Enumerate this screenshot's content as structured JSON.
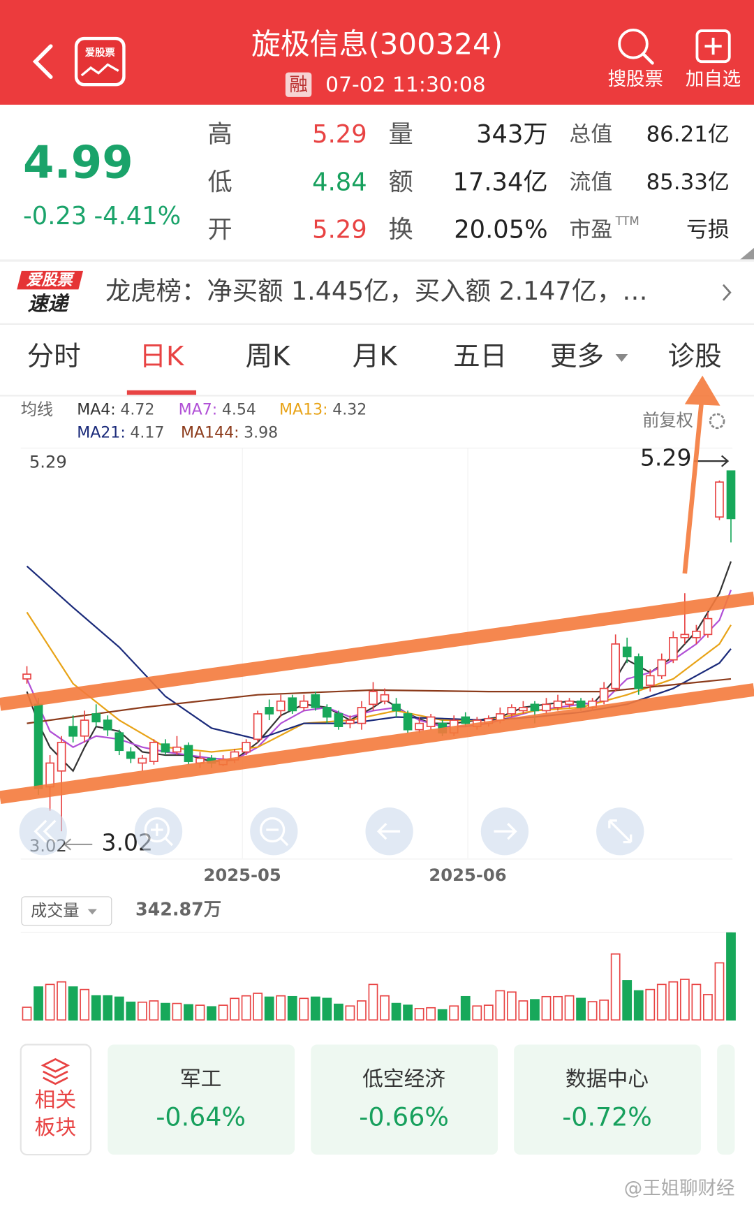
{
  "header": {
    "logo_text": "爱股票",
    "title": "旋极信息(300324)",
    "badge": "融",
    "time": "07-02 11:30:08",
    "actions": [
      "搜股票",
      "加自选"
    ]
  },
  "quote": {
    "price": "4.99",
    "change": "-0.23",
    "change_pct": "-4.41%",
    "stats": [
      [
        "高",
        "5.29",
        "量",
        "343万",
        "总值",
        "86.21亿"
      ],
      [
        "低",
        "4.84",
        "额",
        "17.34亿",
        "流值",
        "85.33亿"
      ],
      [
        "开",
        "5.29",
        "换",
        "20.05%",
        "市盈",
        "亏损"
      ]
    ],
    "pe_sup": "TTM",
    "stat_value_colors": [
      "#e84343",
      "#17a05d",
      "#e84343"
    ]
  },
  "news": {
    "logo_top": "爱股票",
    "logo_bottom": "速递",
    "text": "龙虎榜：净买额 1.445亿，买入额 2.147亿，…"
  },
  "tabs": {
    "items": [
      "分时",
      "日K",
      "周K",
      "月K",
      "五日",
      "更多",
      "诊股"
    ],
    "active": 1
  },
  "chart_data": {
    "type": "candlestick",
    "indicator_label": "均线",
    "adjust": "前复权",
    "xlim": [
      -0.53,
      61.13
    ],
    "ylim": [
      2.85,
      5.42
    ],
    "xticks": [
      {
        "value": 18.67,
        "label": "2025-05"
      },
      {
        "value": 38.2,
        "label": "2025-06"
      }
    ],
    "high_mark": 5.29,
    "low_mark": 3.02,
    "up_color": "#e84343",
    "down_color": "#17a85a",
    "candles": [
      [
        3.98,
        4.06,
        3.95,
        4.01
      ],
      [
        3.82,
        3.86,
        3.25,
        3.29
      ],
      [
        3.3,
        3.5,
        3.15,
        3.45
      ],
      [
        3.4,
        3.62,
        3.02,
        3.58
      ],
      [
        3.68,
        3.75,
        3.58,
        3.62
      ],
      [
        3.62,
        3.78,
        3.58,
        3.72
      ],
      [
        3.76,
        3.82,
        3.68,
        3.71
      ],
      [
        3.72,
        3.75,
        3.62,
        3.66
      ],
      [
        3.64,
        3.66,
        3.5,
        3.53
      ],
      [
        3.52,
        3.55,
        3.45,
        3.48
      ],
      [
        3.45,
        3.5,
        3.4,
        3.48
      ],
      [
        3.46,
        3.6,
        3.44,
        3.58
      ],
      [
        3.57,
        3.6,
        3.5,
        3.52
      ],
      [
        3.52,
        3.62,
        3.5,
        3.55
      ],
      [
        3.56,
        3.58,
        3.44,
        3.46
      ],
      [
        3.45,
        3.52,
        3.42,
        3.48
      ],
      [
        3.48,
        3.5,
        3.42,
        3.45
      ],
      [
        3.44,
        3.5,
        3.43,
        3.47
      ],
      [
        3.47,
        3.54,
        3.45,
        3.52
      ],
      [
        3.52,
        3.6,
        3.5,
        3.58
      ],
      [
        3.6,
        3.78,
        3.58,
        3.76
      ],
      [
        3.8,
        3.85,
        3.72,
        3.76
      ],
      [
        3.78,
        3.88,
        3.74,
        3.84
      ],
      [
        3.86,
        3.88,
        3.76,
        3.78
      ],
      [
        3.8,
        3.88,
        3.78,
        3.84
      ],
      [
        3.88,
        3.9,
        3.78,
        3.8
      ],
      [
        3.8,
        3.82,
        3.7,
        3.74
      ],
      [
        3.76,
        3.78,
        3.66,
        3.68
      ],
      [
        3.7,
        3.75,
        3.67,
        3.72
      ],
      [
        3.7,
        3.84,
        3.66,
        3.8
      ],
      [
        3.82,
        3.96,
        3.78,
        3.9
      ],
      [
        3.84,
        3.92,
        3.82,
        3.88
      ],
      [
        3.82,
        3.86,
        3.74,
        3.78
      ],
      [
        3.76,
        3.78,
        3.64,
        3.66
      ],
      [
        3.66,
        3.74,
        3.64,
        3.7
      ],
      [
        3.68,
        3.76,
        3.66,
        3.74
      ],
      [
        3.7,
        3.72,
        3.62,
        3.64
      ],
      [
        3.64,
        3.75,
        3.62,
        3.72
      ],
      [
        3.74,
        3.77,
        3.68,
        3.7
      ],
      [
        3.68,
        3.74,
        3.66,
        3.72
      ],
      [
        3.7,
        3.75,
        3.68,
        3.73
      ],
      [
        3.72,
        3.8,
        3.7,
        3.76
      ],
      [
        3.76,
        3.82,
        3.74,
        3.8
      ],
      [
        3.78,
        3.84,
        3.76,
        3.8
      ],
      [
        3.82,
        3.84,
        3.7,
        3.78
      ],
      [
        3.78,
        3.86,
        3.76,
        3.82
      ],
      [
        3.8,
        3.88,
        3.78,
        3.84
      ],
      [
        3.82,
        3.86,
        3.8,
        3.84
      ],
      [
        3.84,
        3.86,
        3.78,
        3.8
      ],
      [
        3.8,
        3.86,
        3.78,
        3.84
      ],
      [
        3.84,
        3.96,
        3.82,
        3.92
      ],
      [
        3.92,
        4.26,
        3.9,
        4.2
      ],
      [
        4.18,
        4.24,
        4.08,
        4.12
      ],
      [
        4.12,
        4.14,
        3.88,
        3.92
      ],
      [
        3.94,
        4.04,
        3.9,
        4.0
      ],
      [
        4.0,
        4.14,
        3.98,
        4.1
      ],
      [
        4.1,
        4.28,
        4.08,
        4.24
      ],
      [
        4.24,
        4.52,
        4.2,
        4.26
      ],
      [
        4.24,
        4.32,
        4.2,
        4.28
      ],
      [
        4.26,
        4.4,
        4.24,
        4.36
      ],
      [
        5.0,
        5.23,
        4.98,
        5.22
      ],
      [
        5.29,
        5.29,
        4.84,
        4.99
      ]
    ],
    "series": [
      {
        "name": "MA4:",
        "value_label": "4.72",
        "color": "#333333",
        "x": [
          0,
          1,
          2,
          4,
          5,
          6,
          8,
          10,
          12,
          14,
          16,
          18,
          20,
          22,
          24,
          26,
          28,
          30,
          31,
          33,
          35,
          37,
          39,
          41,
          43,
          45,
          47,
          49,
          51,
          52,
          54,
          56,
          58,
          60,
          61
        ],
        "values": [
          3.9,
          3.7,
          3.55,
          3.4,
          3.55,
          3.68,
          3.65,
          3.52,
          3.5,
          3.5,
          3.46,
          3.47,
          3.58,
          3.75,
          3.82,
          3.8,
          3.72,
          3.8,
          3.85,
          3.76,
          3.7,
          3.7,
          3.72,
          3.74,
          3.8,
          3.82,
          3.84,
          3.82,
          3.98,
          4.1,
          4.02,
          4.12,
          4.28,
          4.52,
          4.72
        ]
      },
      {
        "name": "MA7:",
        "value_label": "4.54",
        "color": "#b04fd6",
        "x": [
          0,
          2,
          4,
          6,
          8,
          10,
          12,
          14,
          16,
          18,
          20,
          22,
          24,
          26,
          28,
          30,
          32,
          34,
          36,
          38,
          40,
          42,
          44,
          46,
          48,
          50,
          52,
          54,
          56,
          58,
          60,
          61
        ],
        "values": [
          3.98,
          3.65,
          3.55,
          3.62,
          3.6,
          3.55,
          3.52,
          3.5,
          3.48,
          3.47,
          3.55,
          3.7,
          3.78,
          3.8,
          3.74,
          3.78,
          3.8,
          3.72,
          3.68,
          3.68,
          3.7,
          3.74,
          3.78,
          3.8,
          3.82,
          3.84,
          3.98,
          4.02,
          4.1,
          4.2,
          4.35,
          4.54
        ]
      },
      {
        "name": "MA13:",
        "value_label": "4.32",
        "color": "#e8a317",
        "x": [
          0,
          4,
          8,
          12,
          16,
          20,
          24,
          28,
          32,
          36,
          40,
          44,
          48,
          52,
          56,
          60,
          61
        ],
        "values": [
          4.4,
          3.95,
          3.72,
          3.55,
          3.52,
          3.55,
          3.7,
          3.72,
          3.78,
          3.72,
          3.72,
          3.78,
          3.8,
          3.88,
          3.98,
          4.2,
          4.32
        ]
      },
      {
        "name": "MA21:",
        "value_label": "4.17",
        "color": "#1a2a7a",
        "x": [
          0,
          4,
          8,
          12,
          16,
          20,
          24,
          28,
          32,
          36,
          40,
          44,
          48,
          52,
          56,
          60,
          61
        ],
        "values": [
          4.69,
          4.43,
          4.18,
          3.87,
          3.67,
          3.6,
          3.7,
          3.7,
          3.74,
          3.73,
          3.72,
          3.74,
          3.77,
          3.82,
          3.92,
          4.08,
          4.17
        ]
      },
      {
        "name": "MA144:",
        "value_label": "3.98",
        "color": "#8b3a1a",
        "x": [
          0,
          10,
          20,
          30,
          40,
          50,
          61
        ],
        "values": [
          3.7,
          3.8,
          3.88,
          3.91,
          3.9,
          3.9,
          3.98
        ]
      }
    ],
    "volume": {
      "label": "成交量",
      "current_label": "342.87万",
      "max": 342.87,
      "values": [
        50,
        130,
        140,
        150,
        130,
        120,
        95,
        95,
        90,
        70,
        70,
        75,
        65,
        65,
        60,
        58,
        52,
        58,
        85,
        95,
        105,
        90,
        95,
        92,
        85,
        90,
        85,
        62,
        55,
        75,
        140,
        95,
        65,
        58,
        45,
        48,
        40,
        55,
        92,
        55,
        58,
        115,
        110,
        75,
        80,
        92,
        92,
        95,
        85,
        72,
        78,
        260,
        155,
        115,
        120,
        140,
        150,
        160,
        140,
        100,
        225,
        342.87
      ]
    }
  },
  "sectors": {
    "label_top": "相关",
    "label_bottom": "板块",
    "items": [
      {
        "name": "军工",
        "change": "-0.64%"
      },
      {
        "name": "低空经济",
        "change": "-0.66%"
      },
      {
        "name": "数据中心",
        "change": "-0.72%"
      }
    ]
  },
  "watermark": "@王姐聊财经"
}
